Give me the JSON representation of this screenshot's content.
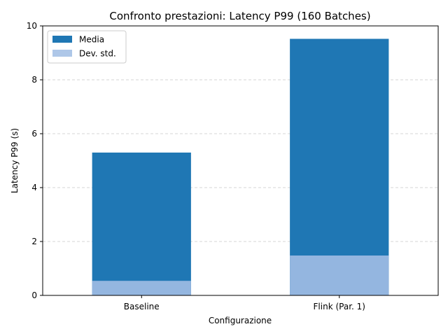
{
  "chart_data": {
    "type": "bar",
    "title": "Confronto prestazioni: Latency P99 (160 Batches)",
    "xlabel": "Configurazione",
    "ylabel": "Latency P99 (s)",
    "categories": [
      "Baseline",
      "Flink (Par. 1)"
    ],
    "series": [
      {
        "name": "Media",
        "values": [
          5.3,
          9.52
        ],
        "color": "#1f77b4"
      },
      {
        "name": "Dev. std.",
        "values": [
          0.54,
          1.48
        ],
        "color": "#aec7e8"
      }
    ],
    "overlap_color": "#94b6e0",
    "ylim": [
      0,
      10
    ],
    "yticks": [
      0,
      2,
      4,
      6,
      8,
      10
    ],
    "grid": "y-dashed",
    "legend": "top-left"
  }
}
